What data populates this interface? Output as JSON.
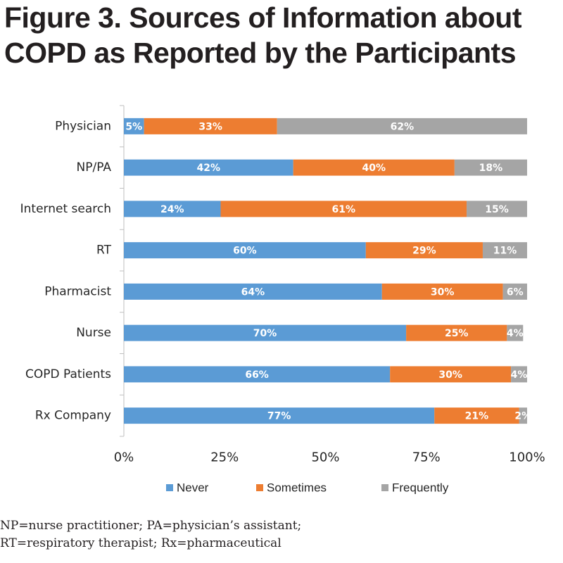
{
  "title": {
    "line1": "Figure 3.  Sources of Information about",
    "line2": "COPD as Reported by the Participants"
  },
  "chart_data": {
    "type": "bar",
    "orientation": "horizontal",
    "stacked": "percent",
    "categories": [
      "Physician",
      "NP/PA",
      "Internet search",
      "RT",
      "Pharmacist",
      "Nurse",
      "COPD Patients",
      "Rx Company"
    ],
    "series": [
      {
        "name": "Never",
        "color": "#5b9bd5",
        "values": [
          5,
          42,
          24,
          60,
          64,
          70,
          66,
          77
        ]
      },
      {
        "name": "Sometimes",
        "color": "#ed7d31",
        "values": [
          33,
          40,
          61,
          29,
          30,
          25,
          30,
          21
        ]
      },
      {
        "name": "Frequently",
        "color": "#a5a5a5",
        "values": [
          62,
          18,
          15,
          11,
          6,
          4,
          4,
          2
        ]
      }
    ],
    "data_labels": [
      [
        "5%",
        "42%",
        "24%",
        "60%",
        "64%",
        "70%",
        "66%",
        "77%"
      ],
      [
        "33%",
        "40%",
        "61%",
        "29%",
        "30%",
        "25%",
        "30%",
        "21%"
      ],
      [
        "62%",
        "18%",
        "15%",
        "11%",
        "6%",
        "4%",
        "4%",
        "2%"
      ]
    ],
    "xlim": [
      0,
      100
    ],
    "x_ticks": [
      "0%",
      "25%",
      "50%",
      "75%",
      "100%"
    ],
    "legend_position": "bottom",
    "grid": false
  },
  "footnote": {
    "line1": "NP=nurse practitioner; PA=physician’s assistant;",
    "line2": "RT=respiratory therapist; Rx=pharmaceutical"
  }
}
